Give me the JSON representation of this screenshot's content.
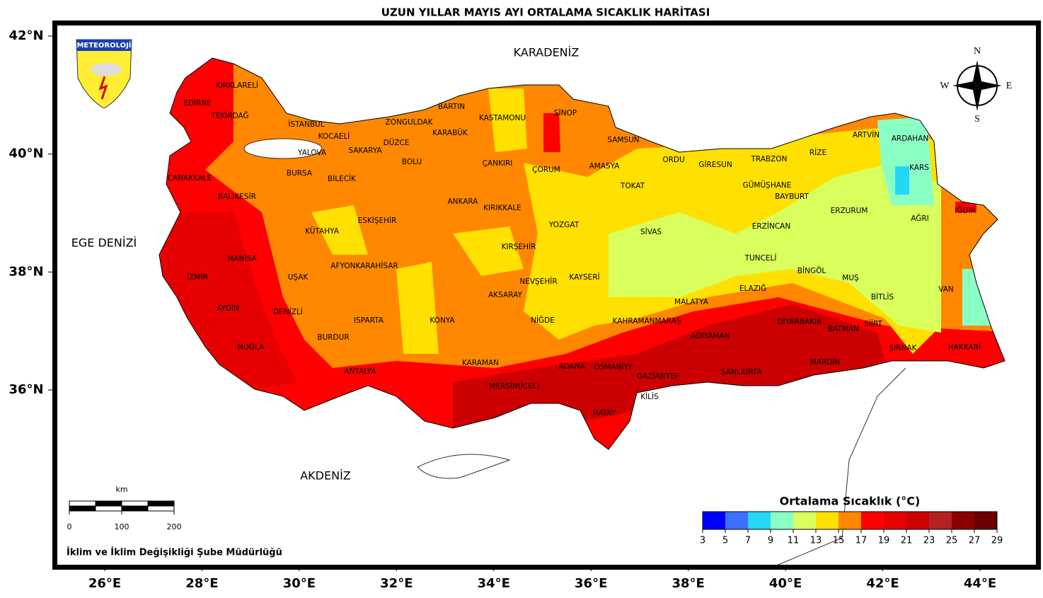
{
  "header": {
    "title": "UZUN YILLAR MAYIS AYI ORTALAMA SICAKLIK HARİTASI"
  },
  "map": {
    "lon_ticks": [
      {
        "value": 26,
        "label": "26°E"
      },
      {
        "value": 28,
        "label": "28°E"
      },
      {
        "value": 30,
        "label": "30°E"
      },
      {
        "value": 32,
        "label": "32°E"
      },
      {
        "value": 34,
        "label": "34°E"
      },
      {
        "value": 36,
        "label": "36°E"
      },
      {
        "value": 38,
        "label": "38°E"
      },
      {
        "value": 40,
        "label": "40°E"
      },
      {
        "value": 42,
        "label": "42°E"
      },
      {
        "value": 44,
        "label": "44°E"
      }
    ],
    "lat_ticks": [
      {
        "value": 42,
        "label": "42°N"
      },
      {
        "value": 40,
        "label": "40°N"
      },
      {
        "value": 38,
        "label": "38°N"
      },
      {
        "value": 36,
        "label": "36°N"
      }
    ],
    "seas": [
      "KARADENİZ",
      "EGE DENİZİ",
      "AKDENİZ"
    ],
    "logo_text": "METEOROLOJİ",
    "compass": [
      "N",
      "E",
      "S",
      "W"
    ],
    "provinces": [
      "KIRKLARELİ",
      "EDİRNE",
      "TEKİRDAĞ",
      "İSTANBUL",
      "KOCAELİ",
      "SAKARYA",
      "YALOVA",
      "DÜZCE",
      "ZONGULDAK",
      "BARTIN",
      "KARABÜK",
      "KASTAMONU",
      "SİNOP",
      "SAMSUN",
      "ÇANAKKALE",
      "BURSA",
      "BİLECİK",
      "BOLU",
      "ÇANKIRI",
      "ÇORUM",
      "AMASYA",
      "TOKAT",
      "ORDU",
      "GİRESUN",
      "TRABZON",
      "RİZE",
      "ARTVİN",
      "ARDAHAN",
      "KARS",
      "BALIKESİR",
      "ESKİŞEHİR",
      "ANKARA",
      "KIRIKKALE",
      "YOZGAT",
      "SİVAS",
      "GÜMÜŞHANE",
      "BAYBURT",
      "ERZURUM",
      "ERZİNCAN",
      "AĞRI",
      "IĞDIR",
      "KÜTAHYA",
      "MANİSA",
      "UŞAK",
      "AFYONKARAHİSAR",
      "KIRŞEHİR",
      "NEVŞEHİR",
      "KAYSERİ",
      "AKSARAY",
      "MALATYA",
      "TUNCELİ",
      "ELAZIĞ",
      "BİNGÖL",
      "MUŞ",
      "BİTLİS",
      "VAN",
      "İZMİR",
      "AYDIN",
      "DENİZLİ",
      "ISPARTA",
      "KONYA",
      "NİĞDE",
      "KAHRAMANMARAŞ",
      "ADIYAMAN",
      "DİYARBAKIR",
      "BATMAN",
      "SİİRT",
      "ŞIRNAK",
      "HAKKARİ",
      "MUĞLA",
      "BURDUR",
      "ANTALYA",
      "KARAMAN",
      "MERSİN(İÇEL)",
      "ADANA",
      "OSMANİYE",
      "GAZİANTEP",
      "ŞANLIURFA",
      "MARDİN",
      "KİLİS",
      "HATAY"
    ]
  },
  "legend": {
    "title": "Ortalama Sıcaklık (°C)",
    "ticks": [
      3,
      5,
      7,
      9,
      11,
      13,
      15,
      17,
      19,
      21,
      23,
      25,
      27,
      29
    ],
    "colors": [
      "#0000ff",
      "#3d6eff",
      "#22d8f5",
      "#8affc4",
      "#d8ff5c",
      "#ffe000",
      "#ff8800",
      "#ff0000",
      "#e60000",
      "#cc0000",
      "#b22222",
      "#8b0000",
      "#6b0000"
    ]
  },
  "scale_bar": {
    "unit": "km",
    "ticks": [
      0,
      100,
      200
    ]
  },
  "footer": "İklim ve İklim Değişikliği Şube Müdürlüğü"
}
